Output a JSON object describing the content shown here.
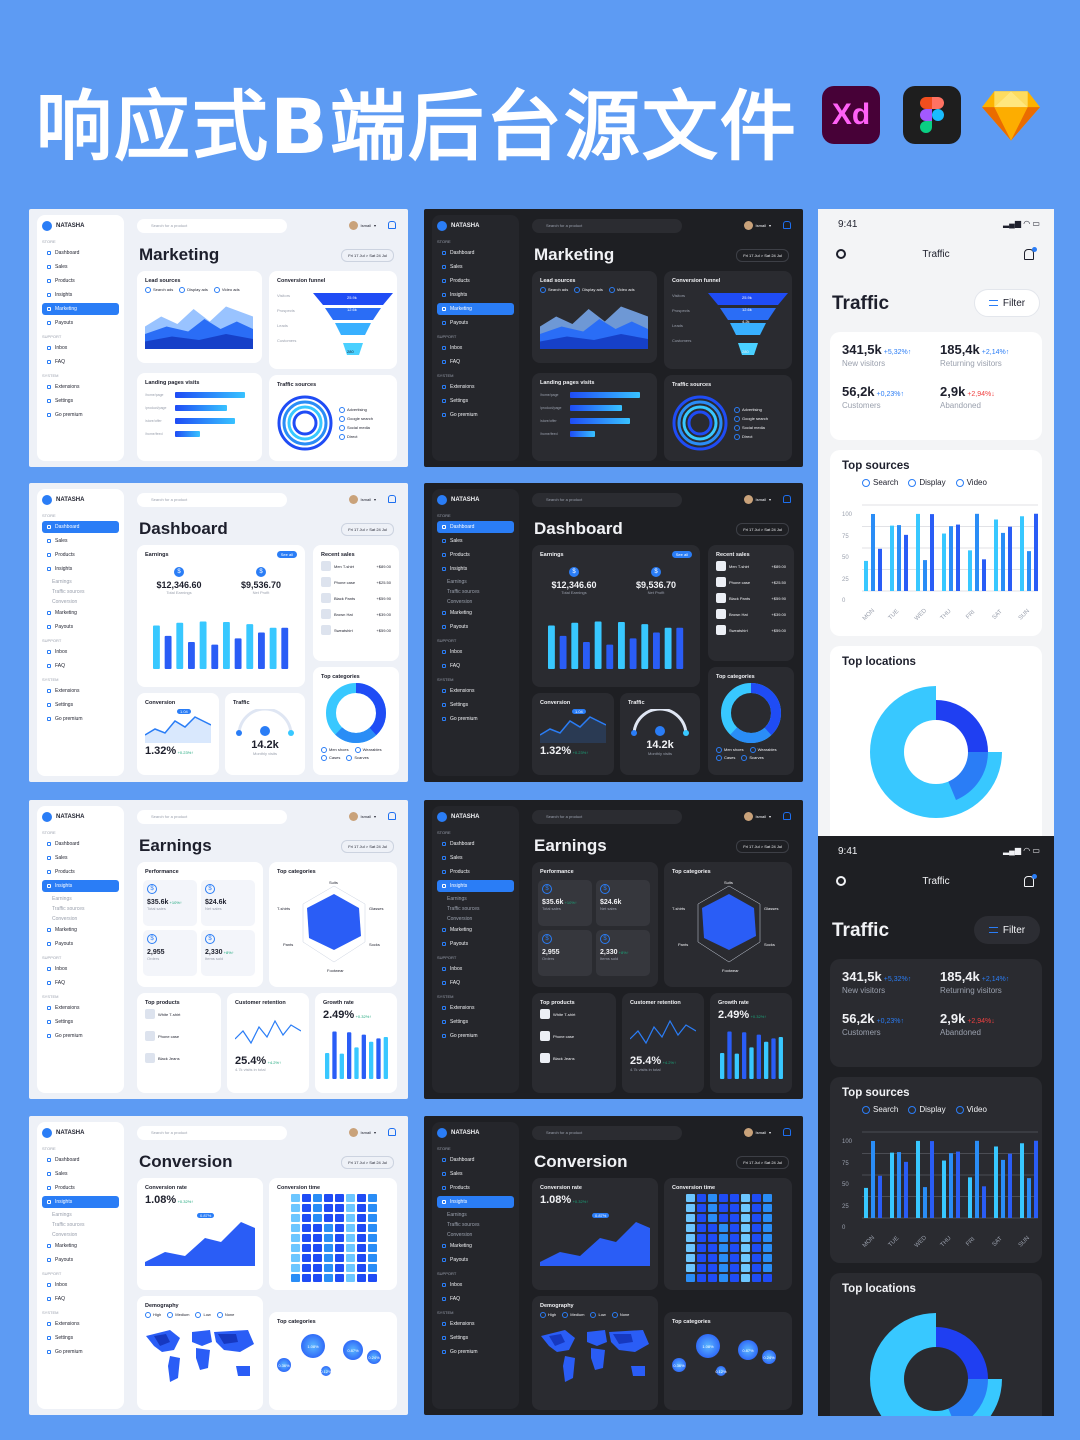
{
  "hero": {
    "title": "响应式B端后台源文件",
    "xd_label": "Xd",
    "icons": [
      "xd-icon",
      "figma-icon",
      "sketch-icon"
    ]
  },
  "sidebar": {
    "brand": "NATASHA",
    "sections": {
      "store": "STORE",
      "support": "SUPPORT",
      "system": "SYSTEM"
    },
    "items": [
      "Dashboard",
      "Sales",
      "Products",
      "Insights",
      "Marketing",
      "Payouts"
    ],
    "insight_subs": [
      "Earnings",
      "Traffic sources",
      "Conversion"
    ],
    "support_items": [
      "Inbox",
      "FAQ"
    ],
    "system_items": [
      "Extensions",
      "Settings",
      "Go premium"
    ],
    "inbox_count": "2"
  },
  "topbar": {
    "search_placeholder": "Search for a product",
    "user": "Ismail",
    "date_range": "Fri 17 Jul  >  Sat 24 Jul"
  },
  "marketing": {
    "title": "Marketing",
    "lead_sources": {
      "title": "Lead sources",
      "legend": [
        "Search ads",
        "Display ads",
        "Video ads"
      ]
    },
    "funnel": {
      "title": "Conversion funnel",
      "stages": [
        "Visitors",
        "Prospects",
        "Leads",
        "Customers"
      ],
      "values": [
        "25.9k",
        "12.6k",
        "4.2k",
        "280"
      ]
    },
    "landing": {
      "title": "Landing pages visits",
      "pages": [
        "/home/page",
        "/product/page",
        "/store/offer",
        "/home/feed"
      ]
    },
    "traffic_sources": {
      "title": "Traffic sources",
      "legend": [
        "Advertising",
        "Google search",
        "Social media",
        "Direct"
      ]
    }
  },
  "dashboard": {
    "title": "Dashboard",
    "earnings": {
      "title": "Earnings",
      "see_all": "See all",
      "total": "$12,346.60",
      "total_label": "Total Earnings",
      "net": "$9,536.70",
      "net_label": "Net Profit"
    },
    "recent_sales": {
      "title": "Recent sales",
      "items": [
        {
          "name": "Men T-shirt",
          "price": "+$89.00"
        },
        {
          "name": "Phone case",
          "price": "+$25.50"
        },
        {
          "name": "Black Pants",
          "price": "+$59.90"
        },
        {
          "name": "Brown Hat",
          "price": "+$39.00"
        },
        {
          "name": "Sweatshirt",
          "price": "+$59.00"
        }
      ]
    },
    "conversion": {
      "title": "Conversion",
      "value": "1.32%",
      "delta": "+0.23%↑",
      "tip": "1.04"
    },
    "traffic": {
      "title": "Traffic",
      "value": "14.2k",
      "label": "Monthly visits"
    },
    "top_categories": {
      "title": "Top categories",
      "legend": [
        "Men shoes",
        "Wearables",
        "Cases",
        "Scarves"
      ]
    }
  },
  "earnings_page": {
    "title": "Earnings",
    "performance": {
      "title": "Performance",
      "stats": [
        {
          "value": "$35.6k",
          "delta": "+10%↑",
          "label": "Total sales"
        },
        {
          "value": "$24.6k",
          "delta": "",
          "label": "Net sales"
        },
        {
          "value": "2,955",
          "delta": "",
          "label": "Orders"
        },
        {
          "value": "2,330",
          "delta": "+8%↑",
          "label": "Items sold"
        }
      ]
    },
    "top_categories": {
      "title": "Top categories",
      "labels": [
        "Suits",
        "Glasses",
        "Socks",
        "Footwear",
        "Pants",
        "T-shirts"
      ]
    },
    "top_products": {
      "title": "Top products",
      "items": [
        "White T-shirt",
        "Phone case",
        "Black Jeans"
      ]
    },
    "retention": {
      "title": "Customer retention",
      "value": "25.4%",
      "delta": "+4.2%↑",
      "label": "4.7k visits in total"
    },
    "growth": {
      "title": "Growth rate",
      "value": "2.49%",
      "delta": "+0.32%↑"
    }
  },
  "conversion_page": {
    "title": "Conversion",
    "rate": {
      "title": "Conversion rate",
      "value": "1.08%",
      "delta": "+0.32%↑",
      "tip": "0.87%"
    },
    "time": {
      "title": "Conversion time"
    },
    "demography": {
      "title": "Demography",
      "legend": [
        "High",
        "Medium",
        "Low",
        "None"
      ]
    },
    "top_categories": {
      "title": "Top categories",
      "bubbles": [
        "1.08%",
        "0.87%",
        "0.36%",
        "0.24%",
        "0.12%"
      ]
    }
  },
  "mobile": {
    "time": "9:41",
    "header": "Traffic",
    "heading": "Traffic",
    "filter": "Filter",
    "kpis": [
      {
        "value": "341,5k",
        "delta": "+5,32%↑",
        "dir": "up",
        "label": "New visitors"
      },
      {
        "value": "185,4k",
        "delta": "+2,14%↑",
        "dir": "up",
        "label": "Returning visitors"
      },
      {
        "value": "56,2k",
        "delta": "+0,23%↑",
        "dir": "up",
        "label": "Customers"
      },
      {
        "value": "2,9k",
        "delta": "+2,94%↓",
        "dir": "down",
        "label": "Abandoned"
      }
    ],
    "top_sources": {
      "title": "Top sources",
      "legend": [
        "Search",
        "Display",
        "Video"
      ],
      "y_ticks": [
        "100",
        "75",
        "50",
        "25",
        "0"
      ],
      "days": [
        "MON",
        "TUE",
        "WED",
        "THU",
        "FRI",
        "SAT",
        "SUN"
      ]
    },
    "top_locations": {
      "title": "Top locations"
    }
  },
  "colors": {
    "accent": "#2a7df6",
    "bg": "#5d9bf3",
    "dark": "#1e1f23",
    "light": "#eef1f7"
  }
}
